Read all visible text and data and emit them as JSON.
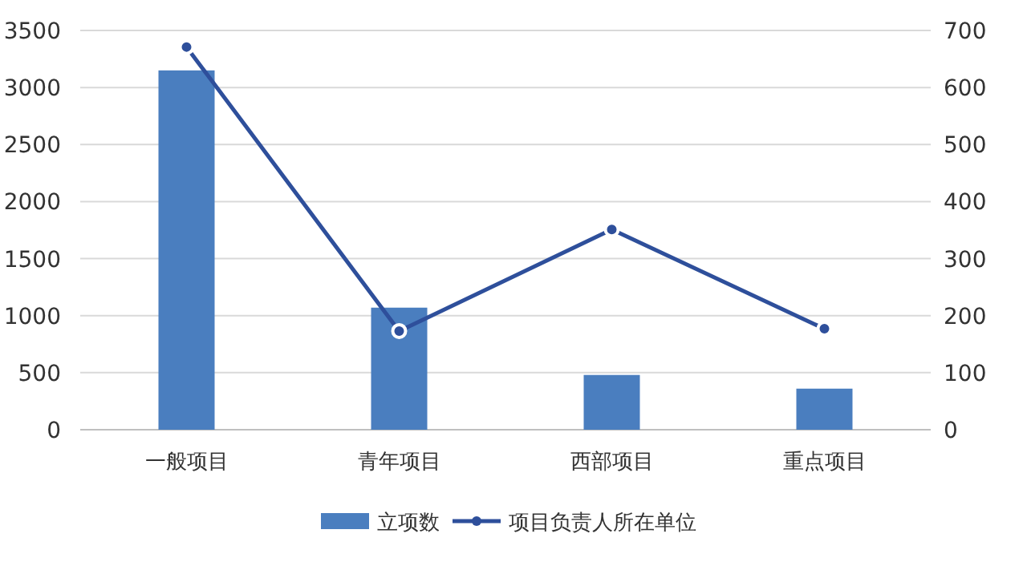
{
  "chart_data": {
    "type": "bar",
    "categories": [
      "一般项目",
      "青年项目",
      "西部项目",
      "重点项目"
    ],
    "series": [
      {
        "name": "立项数",
        "color": "#4a7ebf",
        "values": [
          3150,
          1070,
          480,
          360
        ]
      },
      {
        "name": "项目负责人所在单位",
        "type": "line",
        "axis": "y2",
        "color": "#2e4f9b",
        "values": [
          671,
          173,
          351,
          177
        ]
      }
    ],
    "ylim": [
      0,
      3500
    ],
    "yticks": [
      0,
      500,
      1000,
      1500,
      2000,
      2500,
      3000,
      3500
    ],
    "y2lim": [
      0,
      700
    ],
    "y2ticks": [
      0,
      100,
      200,
      300,
      400,
      500,
      600,
      700
    ],
    "grid": "y",
    "legend": "bottom",
    "marker": "circle"
  }
}
